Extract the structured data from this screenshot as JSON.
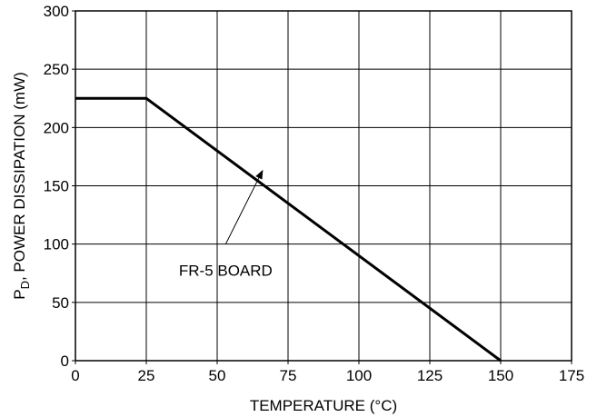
{
  "chart_data": {
    "type": "line",
    "title": "",
    "xlabel": "TEMPERATURE (°C)",
    "ylabel": {
      "main": "P",
      "subscript": "D",
      "rest": ", POWER DISSIPATION (mW)"
    },
    "xlim": [
      0,
      175
    ],
    "ylim": [
      0,
      300
    ],
    "x_ticks": [
      0,
      25,
      50,
      75,
      100,
      125,
      150,
      175
    ],
    "y_ticks": [
      0,
      50,
      100,
      150,
      200,
      250,
      300
    ],
    "x_tick_labels": [
      "0",
      "25",
      "50",
      "75",
      "100",
      "125",
      "150",
      "175"
    ],
    "y_tick_labels": [
      "0",
      "50",
      "100",
      "150",
      "200",
      "250",
      "300"
    ],
    "grid": true,
    "legend": "none",
    "line_color": "#000000",
    "series": [
      {
        "x": [
          0,
          25,
          150
        ],
        "y": [
          225,
          225,
          0
        ]
      }
    ],
    "annotations": [
      {
        "text": "FR-5 BOARD",
        "points_to": {
          "x": 66,
          "y": 163
        },
        "text_anchor_at": {
          "x": 53,
          "y": 100
        }
      }
    ]
  }
}
